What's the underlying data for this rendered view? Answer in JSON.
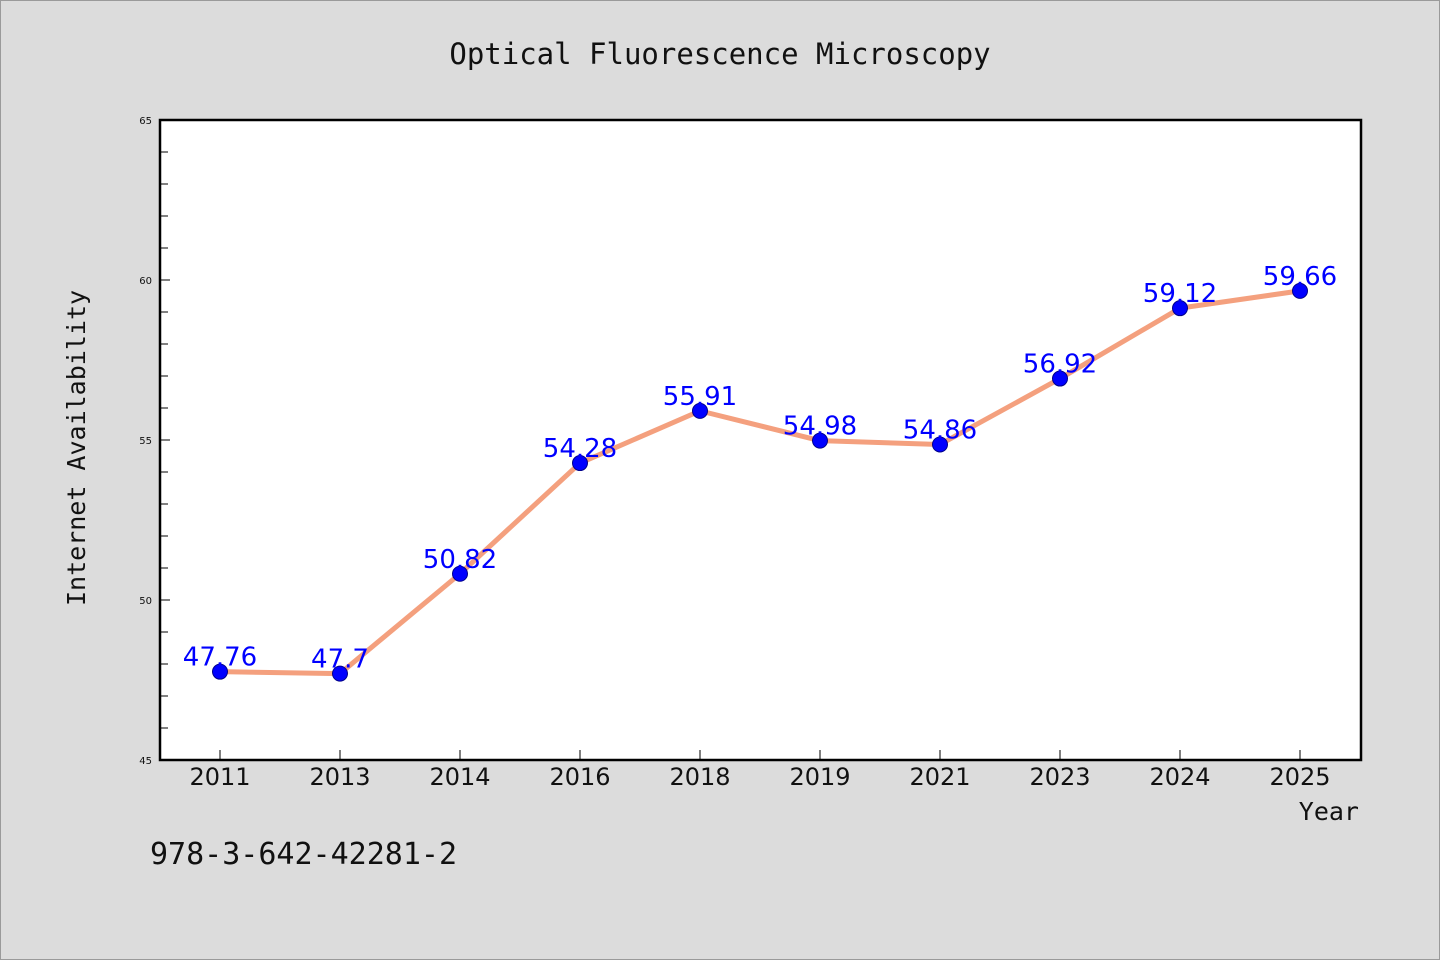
{
  "chart_data": {
    "type": "line",
    "title": "Optical Fluorescence Microscopy",
    "xlabel": "Year",
    "ylabel": "Internet Availability",
    "categories": [
      "2011",
      "2013",
      "2014",
      "2016",
      "2018",
      "2019",
      "2021",
      "2023",
      "2024",
      "2025"
    ],
    "values": [
      47.76,
      47.7,
      50.82,
      54.28,
      55.91,
      54.98,
      54.86,
      56.92,
      59.12,
      59.66
    ],
    "data_labels": [
      "47.76",
      "47.7",
      "50.82",
      "54.28",
      "55.91",
      "54.98",
      "54.86",
      "56.92",
      "59.12",
      "59.66"
    ],
    "ylim": [
      45,
      65
    ],
    "yticks": [
      "45",
      "50",
      "55",
      "60",
      "65"
    ],
    "grid": false,
    "legend": "none",
    "line_color": "#f4a07e",
    "marker_color": "#0000ff",
    "label_color": "#0000ff"
  },
  "footer": {
    "code": "978-3-642-42281-2"
  }
}
